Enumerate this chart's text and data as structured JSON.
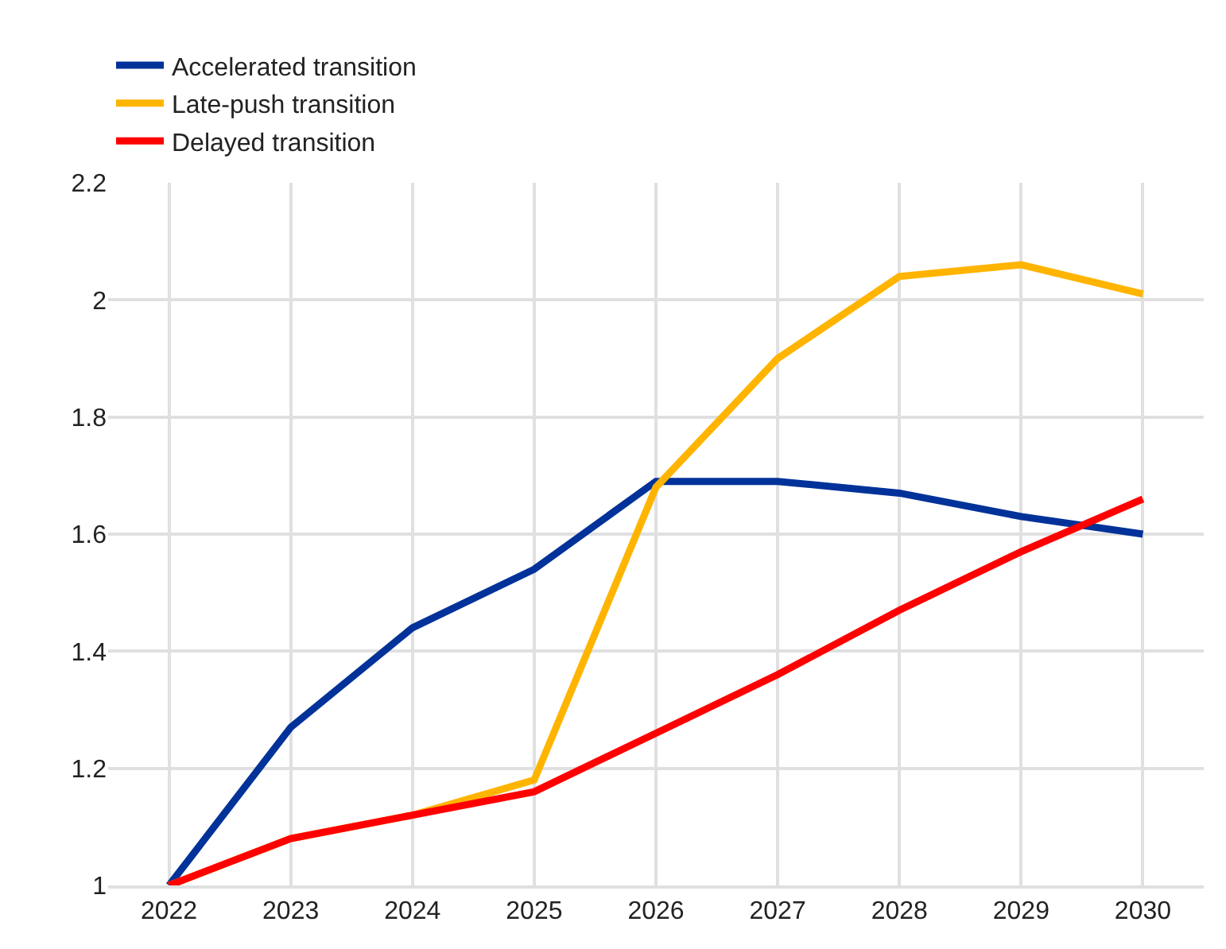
{
  "chart_data": {
    "type": "line",
    "categories": [
      "2022",
      "2023",
      "2024",
      "2025",
      "2026",
      "2027",
      "2028",
      "2029",
      "2030"
    ],
    "series": [
      {
        "name": "Accelerated transition",
        "color": "#003299",
        "values": [
          1.0,
          1.27,
          1.44,
          1.54,
          1.69,
          1.69,
          1.67,
          1.63,
          1.6
        ]
      },
      {
        "name": "Late-push transition",
        "color": "#ffb400",
        "values": [
          1.0,
          1.08,
          1.12,
          1.18,
          1.68,
          1.9,
          2.04,
          2.06,
          2.01
        ]
      },
      {
        "name": "Delayed transition",
        "color": "#ff0000",
        "values": [
          1.0,
          1.08,
          1.12,
          1.16,
          1.26,
          1.36,
          1.47,
          1.57,
          1.66
        ]
      }
    ],
    "ylim": [
      1,
      2.2
    ],
    "yticks": [
      1,
      1.2,
      1.4,
      1.6,
      1.8,
      2,
      2.2
    ],
    "grid": true,
    "legend": "top left",
    "marker": "none",
    "line_style": "solid"
  }
}
